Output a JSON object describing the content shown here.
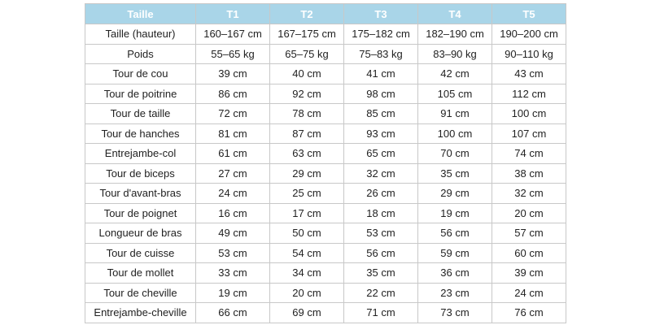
{
  "table": {
    "header": [
      "Taille",
      "T1",
      "T2",
      "T3",
      "T4",
      "T5"
    ],
    "rows": [
      [
        "Taille (hauteur)",
        "160–167 cm",
        "167–175 cm",
        "175–182 cm",
        "182–190 cm",
        "190–200 cm"
      ],
      [
        "Poids",
        "55–65 kg",
        "65–75 kg",
        "75–83 kg",
        "83–90 kg",
        "90–110 kg"
      ],
      [
        "Tour de cou",
        "39 cm",
        "40 cm",
        "41 cm",
        "42 cm",
        "43 cm"
      ],
      [
        "Tour de poitrine",
        "86 cm",
        "92 cm",
        "98 cm",
        "105 cm",
        "112 cm"
      ],
      [
        "Tour de taille",
        "72 cm",
        "78 cm",
        "85 cm",
        "91 cm",
        "100 cm"
      ],
      [
        "Tour de hanches",
        "81 cm",
        "87 cm",
        "93 cm",
        "100 cm",
        "107 cm"
      ],
      [
        "Entrejambe-col",
        "61 cm",
        "63 cm",
        "65 cm",
        "70 cm",
        "74 cm"
      ],
      [
        "Tour de biceps",
        "27 cm",
        "29 cm",
        "32 cm",
        "35 cm",
        "38 cm"
      ],
      [
        "Tour d'avant-bras",
        "24 cm",
        "25 cm",
        "26 cm",
        "29 cm",
        "32 cm"
      ],
      [
        "Tour de poignet",
        "16 cm",
        "17 cm",
        "18 cm",
        "19 cm",
        "20 cm"
      ],
      [
        "Longueur de bras",
        "49 cm",
        "50 cm",
        "53 cm",
        "56 cm",
        "57 cm"
      ],
      [
        "Tour de cuisse",
        "53 cm",
        "54 cm",
        "56 cm",
        "59 cm",
        "60 cm"
      ],
      [
        "Tour de mollet",
        "33 cm",
        "34 cm",
        "35 cm",
        "36 cm",
        "39 cm"
      ],
      [
        "Tour de cheville",
        "19 cm",
        "20 cm",
        "22 cm",
        "23 cm",
        "24 cm"
      ],
      [
        "Entrejambe-cheville",
        "66 cm",
        "69 cm",
        "71 cm",
        "73 cm",
        "76 cm"
      ]
    ]
  }
}
